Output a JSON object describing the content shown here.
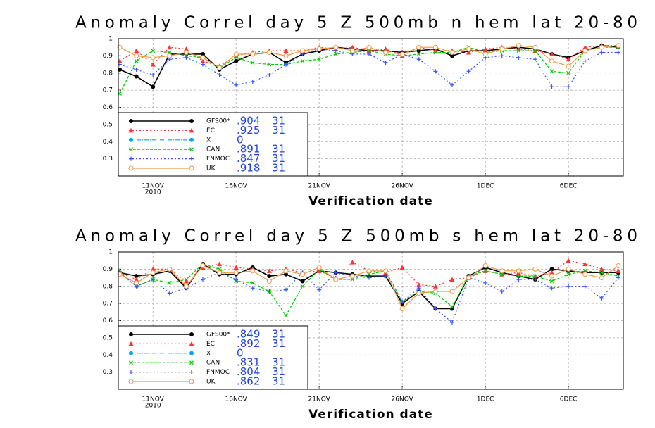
{
  "chart_data": [
    {
      "type": "line",
      "title": "Anomaly Correl  day 5  Z 500mb  n hem  lat 20-80",
      "xlabel": "Verification date",
      "x": [
        0,
        1,
        2,
        3,
        4,
        5,
        6,
        7,
        8,
        9,
        10,
        11,
        12,
        13,
        14,
        15,
        16,
        17,
        18,
        19,
        20,
        21,
        22,
        23,
        24,
        25,
        26,
        27,
        28,
        29,
        30
      ],
      "xlim": [
        -0.085,
        30.3
      ],
      "xticks": [
        {
          "value": 2,
          "label": "11NOV"
        },
        {
          "value": 7,
          "label": "16NOV"
        },
        {
          "value": 12,
          "label": "21NOV"
        },
        {
          "value": 17,
          "label": "26NOV"
        },
        {
          "value": 22,
          "label": "1DEC"
        },
        {
          "value": 27,
          "label": "6DEC"
        }
      ],
      "annotations": [
        {
          "text": "2010",
          "x": 2
        }
      ],
      "ylim": [
        0.2,
        1
      ],
      "yticks": [
        0.3,
        0.4,
        0.5,
        0.6,
        0.7,
        0.8,
        0.9,
        1
      ],
      "grid": true,
      "series": [
        {
          "name": "GFS00*",
          "color": "#000000",
          "marker": "dot",
          "linestyle": "solid",
          "score": 0.904,
          "score_label": ".904",
          "count": 31,
          "values": [
            0.82,
            0.78,
            0.72,
            0.91,
            0.91,
            0.91,
            0.82,
            0.87,
            0.91,
            0.92,
            0.86,
            0.91,
            0.93,
            0.95,
            0.94,
            0.93,
            0.93,
            0.92,
            0.93,
            0.94,
            0.9,
            0.93,
            0.93,
            0.94,
            0.95,
            0.94,
            0.91,
            0.89,
            0.93,
            0.96,
            0.95
          ]
        },
        {
          "name": "EC",
          "color": "#ff3333",
          "marker": "triangle",
          "linestyle": "dotted",
          "score": 0.925,
          "score_label": ".925",
          "count": 31,
          "values": [
            0.87,
            0.93,
            0.85,
            0.95,
            0.94,
            0.87,
            0.84,
            0.9,
            0.92,
            0.93,
            0.93,
            0.93,
            0.95,
            0.94,
            0.95,
            0.93,
            0.94,
            0.9,
            0.95,
            0.93,
            0.93,
            0.92,
            0.94,
            0.95,
            0.94,
            0.93,
            0.91,
            0.88,
            0.95,
            0.96,
            0.96
          ]
        },
        {
          "name": "X",
          "color": "#00aaee",
          "marker": "disc",
          "linestyle": "dashdot",
          "score": 0,
          "values": [
            null,
            null,
            null,
            null,
            null,
            null,
            null,
            null,
            null,
            null,
            null,
            null,
            null,
            null,
            null,
            null,
            null,
            null,
            null,
            null,
            null,
            null,
            null,
            null,
            null,
            null,
            null,
            null,
            null,
            null,
            null
          ]
        },
        {
          "name": "CAN",
          "color": "#00cc00",
          "marker": "cross",
          "linestyle": "dashed",
          "score": 0.891,
          "score_label": ".891",
          "count": 31,
          "values": [
            0.68,
            0.87,
            0.93,
            0.92,
            0.9,
            0.89,
            0.83,
            0.89,
            0.86,
            0.85,
            0.85,
            0.87,
            0.88,
            0.91,
            0.92,
            0.93,
            0.91,
            0.9,
            0.91,
            0.92,
            0.92,
            0.95,
            0.92,
            0.93,
            0.93,
            0.93,
            0.81,
            0.8,
            0.93,
            0.95,
            0.95
          ]
        },
        {
          "name": "FNMOC",
          "color": "#3355ff",
          "marker": "plus",
          "linestyle": "dotted",
          "score": 0.847,
          "score_label": ".847",
          "count": 31,
          "values": [
            0.85,
            0.82,
            0.79,
            0.88,
            0.89,
            0.85,
            0.79,
            0.73,
            0.75,
            0.79,
            0.85,
            0.91,
            0.94,
            0.93,
            0.91,
            0.91,
            0.86,
            0.91,
            0.88,
            0.81,
            0.73,
            0.81,
            0.89,
            0.9,
            0.89,
            0.88,
            0.72,
            0.72,
            0.87,
            0.92,
            0.92
          ]
        },
        {
          "name": "UK",
          "color": "#ee9944",
          "marker": "circle",
          "linestyle": "solid",
          "score": 0.918,
          "score_label": ".918",
          "count": 31,
          "values": [
            0.95,
            0.9,
            0.89,
            0.9,
            0.92,
            0.89,
            0.83,
            0.91,
            0.91,
            0.92,
            0.9,
            0.93,
            0.94,
            0.95,
            0.93,
            0.95,
            0.92,
            0.91,
            0.95,
            0.95,
            0.92,
            0.94,
            0.91,
            0.94,
            0.96,
            0.95,
            0.87,
            0.84,
            0.93,
            0.95,
            0.96
          ]
        }
      ]
    },
    {
      "type": "line",
      "title": "Anomaly Correl  day 5  Z 500mb  s hem  lat 20-80",
      "xlabel": "Verification date",
      "x": [
        0,
        1,
        2,
        3,
        4,
        5,
        6,
        7,
        8,
        9,
        10,
        11,
        12,
        13,
        14,
        15,
        16,
        17,
        18,
        19,
        20,
        21,
        22,
        23,
        24,
        25,
        26,
        27,
        28,
        29,
        30
      ],
      "xlim": [
        -0.085,
        30.3
      ],
      "xticks": [
        {
          "value": 2,
          "label": "11NOV"
        },
        {
          "value": 7,
          "label": "16NOV"
        },
        {
          "value": 12,
          "label": "21NOV"
        },
        {
          "value": 17,
          "label": "26NOV"
        },
        {
          "value": 22,
          "label": "1DEC"
        },
        {
          "value": 27,
          "label": "6DEC"
        }
      ],
      "annotations": [
        {
          "text": "2010",
          "x": 2
        }
      ],
      "ylim": [
        0.2,
        1
      ],
      "yticks": [
        0.3,
        0.4,
        0.5,
        0.6,
        0.7,
        0.8,
        0.9,
        1
      ],
      "grid": true,
      "series": [
        {
          "name": "GFS00*",
          "color": "#000000",
          "marker": "dot",
          "linestyle": "solid",
          "score": 0.849,
          "score_label": ".849",
          "count": 31,
          "values": [
            0.88,
            0.86,
            0.87,
            0.89,
            0.79,
            0.93,
            0.87,
            0.87,
            0.91,
            0.86,
            0.87,
            0.83,
            0.89,
            0.88,
            0.87,
            0.86,
            0.86,
            0.7,
            0.77,
            0.67,
            0.67,
            0.86,
            0.91,
            0.88,
            0.86,
            0.84,
            0.9,
            0.89,
            0.88,
            0.88,
            0.88
          ]
        },
        {
          "name": "EC",
          "color": "#ff3333",
          "marker": "triangle",
          "linestyle": "dotted",
          "score": 0.892,
          "score_label": ".892",
          "count": 31,
          "values": [
            0.88,
            0.84,
            0.9,
            0.9,
            0.83,
            0.91,
            0.93,
            0.91,
            0.9,
            0.89,
            0.9,
            0.88,
            0.89,
            0.85,
            0.94,
            0.89,
            0.88,
            0.91,
            0.81,
            0.8,
            0.84,
            0.85,
            0.89,
            0.87,
            0.88,
            0.86,
            0.88,
            0.95,
            0.93,
            0.9,
            0.89
          ]
        },
        {
          "name": "X",
          "color": "#00aaee",
          "marker": "disc",
          "linestyle": "dashdot",
          "score": 0,
          "values": [
            null,
            null,
            null,
            null,
            null,
            null,
            null,
            null,
            null,
            null,
            null,
            null,
            null,
            null,
            null,
            null,
            null,
            null,
            null,
            null,
            null,
            null,
            null,
            null,
            null,
            null,
            null,
            null,
            null,
            null,
            null
          ]
        },
        {
          "name": "CAN",
          "color": "#00cc00",
          "marker": "cross",
          "linestyle": "dashed",
          "score": 0.831,
          "score_label": ".831",
          "count": 31,
          "values": [
            0.88,
            0.8,
            0.84,
            0.82,
            0.84,
            0.93,
            0.9,
            0.83,
            0.82,
            0.77,
            0.63,
            0.8,
            0.9,
            0.84,
            0.84,
            0.87,
            0.89,
            0.71,
            0.77,
            0.76,
            0.68,
            0.86,
            0.89,
            0.87,
            0.86,
            0.86,
            0.83,
            0.87,
            0.89,
            0.88,
            0.86
          ]
        },
        {
          "name": "FNMOC",
          "color": "#3355ff",
          "marker": "plus",
          "linestyle": "dotted",
          "score": 0.804,
          "score_label": ".804",
          "count": 31,
          "values": [
            0.88,
            0.8,
            0.84,
            0.76,
            0.79,
            0.84,
            0.88,
            0.84,
            0.79,
            0.77,
            0.78,
            0.88,
            0.78,
            0.88,
            0.86,
            0.85,
            0.86,
            0.71,
            0.79,
            0.67,
            0.59,
            0.85,
            0.82,
            0.77,
            0.84,
            0.84,
            0.79,
            0.8,
            0.8,
            0.73,
            0.85
          ]
        },
        {
          "name": "UK",
          "color": "#ee9944",
          "marker": "circle",
          "linestyle": "solid",
          "score": 0.862,
          "score_label": ".862",
          "count": 31,
          "values": [
            0.87,
            0.82,
            0.88,
            0.9,
            0.8,
            0.92,
            0.88,
            0.88,
            0.89,
            0.83,
            0.89,
            0.87,
            0.91,
            0.84,
            0.86,
            0.89,
            0.89,
            0.67,
            0.76,
            0.77,
            0.77,
            0.85,
            0.92,
            0.89,
            0.89,
            0.9,
            0.86,
            0.9,
            0.87,
            0.85,
            0.92
          ]
        }
      ]
    }
  ]
}
